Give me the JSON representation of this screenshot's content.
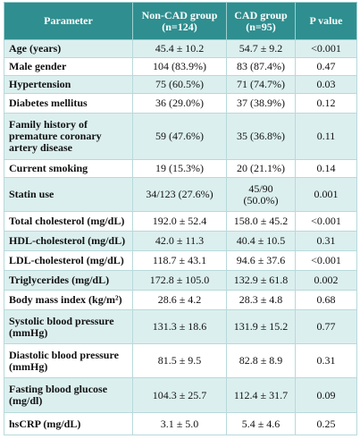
{
  "table": {
    "header": [
      "Parameter",
      "Non-CAD group (n=124)",
      "CAD group (n=95)",
      "P value"
    ],
    "rows": [
      [
        "Age (years)",
        "45.4 ± 10.2",
        "54.7 ± 9.2",
        "<0.001"
      ],
      [
        "Male gender",
        "104 (83.9%)",
        "83 (87.4%)",
        "0.47"
      ],
      [
        "Hypertension",
        "75 (60.5%)",
        "71 (74.7%)",
        "0.03"
      ],
      [
        "Diabetes mellitus",
        "36 (29.0%)",
        "37 (38.9%)",
        "0.12"
      ],
      [
        "Family history of premature coronary artery disease",
        "59 (47.6%)",
        "35 (36.8%)",
        "0.11"
      ],
      [
        "Current smoking",
        "19 (15.3%)",
        "20 (21.1%)",
        "0.14"
      ],
      [
        "Statin use",
        "34/123 (27.6%)",
        "45/90 (50.0%)",
        "0.001"
      ],
      [
        "Total cholesterol (mg/dL)",
        "192.0 ± 52.4",
        "158.0 ± 45.2",
        "<0.001"
      ],
      [
        "HDL-cholesterol (mg/dL)",
        "42.0 ± 11.3",
        "40.4 ± 10.5",
        "0.31"
      ],
      [
        "LDL-cholesterol (mg/dL)",
        "118.7 ± 43.1",
        "94.6 ± 37.6",
        "<0.001"
      ],
      [
        "Triglycerides (mg/dL)",
        "172.8 ± 105.0",
        "132.9 ± 61.8",
        "0.002"
      ],
      [
        "Body mass index (kg/m²)",
        "28.6 ± 4.2",
        "28.3 ± 4.8",
        "0.68"
      ],
      [
        "Systolic blood pressure (mmHg)",
        "131.3 ± 18.6",
        "131.9 ± 15.2",
        "0.77"
      ],
      [
        "Diastolic blood pressure (mmHg)",
        "81.5 ± 9.5",
        "82.8 ± 8.9",
        "0.31"
      ],
      [
        "Fasting blood glucose (mg/dl)",
        "104.3 ± 25.7",
        "112.4 ± 31.7",
        "0.09"
      ],
      [
        "hsCRP (mg/dL)",
        "3.1 ± 5.0",
        "5.4 ± 4.6",
        "0.25"
      ]
    ]
  }
}
